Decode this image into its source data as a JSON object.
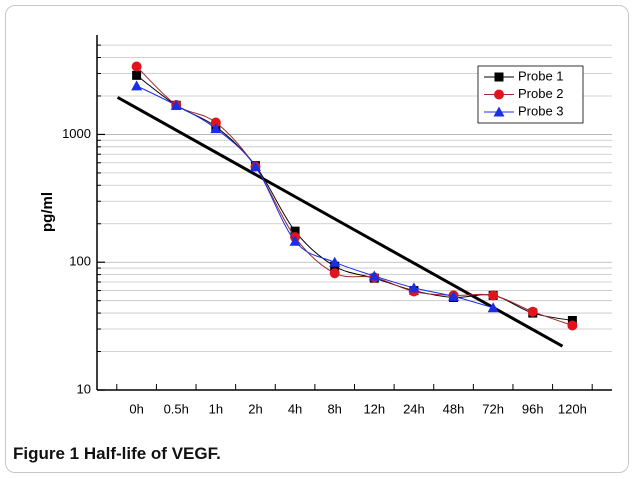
{
  "chart_data": {
    "type": "line",
    "y_label": "pg/ml",
    "categories": [
      "0h",
      "0.5h",
      "1h",
      "2h",
      "4h",
      "8h",
      "12h",
      "24h",
      "48h",
      "72h",
      "96h",
      "120h"
    ],
    "series": [
      {
        "name": "Probe 1",
        "color": "#000000",
        "marker": "square",
        "values": [
          2900,
          1690,
          1150,
          570,
          175,
          93,
          75,
          60,
          53,
          55,
          40,
          35
        ]
      },
      {
        "name": "Probe 2",
        "color": "#e0141c",
        "line_color": "#a0282a",
        "marker": "circle",
        "values": [
          3400,
          1700,
          1240,
          560,
          157,
          82,
          76,
          59,
          55,
          55,
          41,
          32
        ]
      },
      {
        "name": "Probe 3",
        "color": "#1a2ee8",
        "marker": "triangle",
        "values": [
          2400,
          1690,
          1110,
          560,
          146,
          100,
          78,
          63,
          54,
          44,
          null,
          null
        ]
      }
    ],
    "fit_line": {
      "start": 1950,
      "end": 22,
      "color": "#000000"
    },
    "log_scale": true,
    "ylim": [
      10,
      6000
    ],
    "yticks": [
      10,
      100,
      1000
    ],
    "minor_yticks": [
      20,
      30,
      40,
      50,
      60,
      70,
      80,
      90,
      200,
      300,
      400,
      500,
      600,
      700,
      800,
      900,
      2000,
      3000,
      4000,
      5000
    ],
    "grid": true,
    "legend": "upper right",
    "caption": {
      "label": "Figure 1",
      "text": "Half-life of VEGF."
    }
  }
}
